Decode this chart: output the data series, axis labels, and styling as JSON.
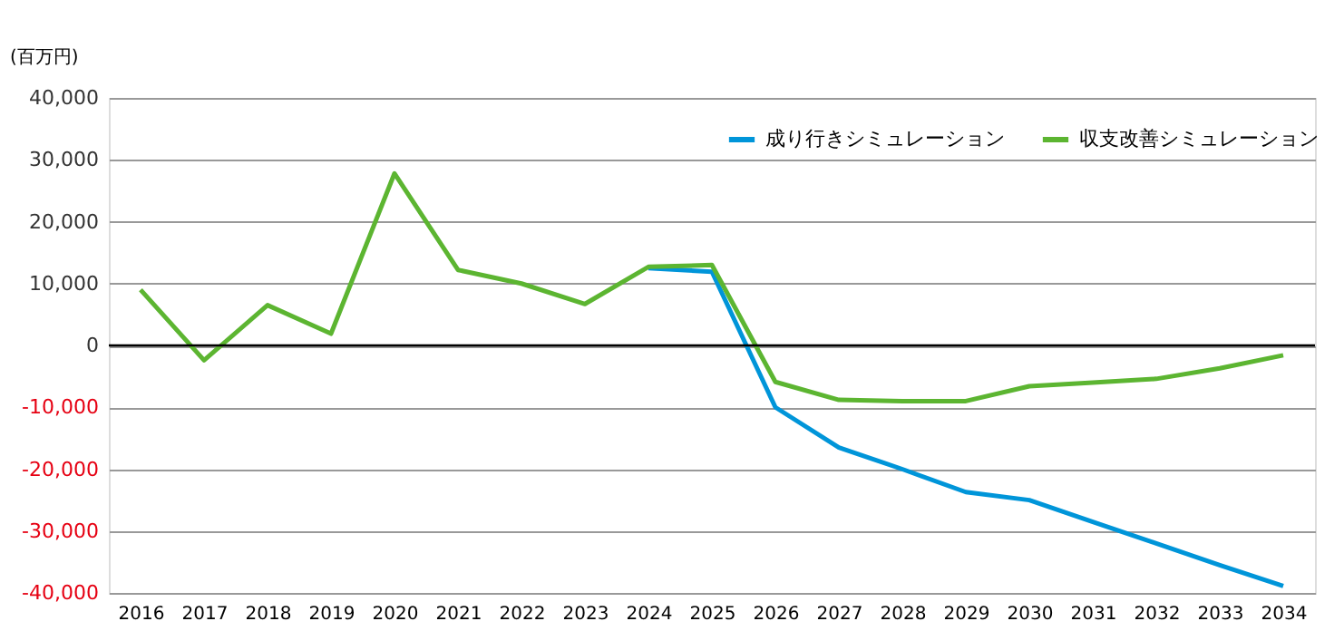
{
  "chart_data": {
    "type": "line",
    "ylabel": "(百万円)",
    "categories": [
      "2016",
      "2017",
      "2018",
      "2019",
      "2020",
      "2021",
      "2022",
      "2023",
      "2024",
      "2025",
      "2026",
      "2027",
      "2028",
      "2029",
      "2030",
      "2031",
      "2032",
      "2033",
      "2034"
    ],
    "series": [
      {
        "name": "成り行きシミュレーション",
        "color": "#0095d9",
        "values": [
          null,
          null,
          null,
          null,
          null,
          null,
          null,
          null,
          12500,
          11900,
          -10000,
          -16500,
          -20000,
          -23700,
          -25000,
          -28500,
          -32000,
          -35500,
          -38900
        ]
      },
      {
        "name": "収支改善シミュレーション",
        "color": "#5cb531",
        "values": [
          9000,
          -2400,
          6500,
          1900,
          27800,
          12200,
          10000,
          6700,
          12700,
          13000,
          -5900,
          -8800,
          -9000,
          -9000,
          -6600,
          -6000,
          -5400,
          -3700,
          -1600
        ]
      }
    ],
    "ylim": [
      -40000,
      40000
    ],
    "yticks": [
      {
        "value": -40000,
        "label": "-40,000"
      },
      {
        "value": -30000,
        "label": "-30,000"
      },
      {
        "value": -20000,
        "label": "-20,000"
      },
      {
        "value": -10000,
        "label": "-10,000"
      },
      0,
      {
        "value": 10000,
        "label": "10,000"
      },
      {
        "value": 20000,
        "label": "20,000"
      },
      {
        "value": 30000,
        "label": "30,000"
      },
      {
        "value": 40000,
        "label": "40,000"
      }
    ],
    "ref_lines": [
      {
        "axis": "y",
        "value": 0,
        "color": "#000000"
      }
    ],
    "grid": "y",
    "legend": "top right",
    "marker": "none",
    "line_style": "solid"
  }
}
